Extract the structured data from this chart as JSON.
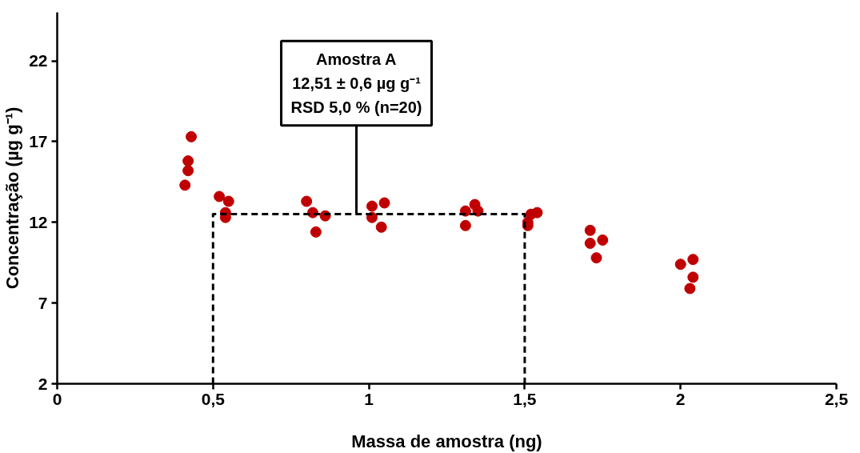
{
  "chart_data": {
    "type": "scatter",
    "xlabel": "Massa de amostra (ng)",
    "ylabel": "Concentração (µg g⁻¹)",
    "xlim": [
      0,
      2.5
    ],
    "ylim": [
      2,
      25
    ],
    "xticks": [
      0,
      {
        "value": 0.5,
        "label": "0,5"
      },
      1,
      {
        "value": 1.5,
        "label": "1,5"
      },
      2,
      {
        "value": 2.5,
        "label": "2,5"
      }
    ],
    "yticks": [
      2,
      7,
      12,
      17,
      22
    ],
    "grid": false,
    "series": [
      {
        "marker": "circle",
        "color": "#c00000",
        "x": [
          0.43,
          0.42,
          0.42,
          0.41,
          0.52,
          0.55,
          0.54,
          0.54,
          0.8,
          0.82,
          0.86,
          0.83,
          1.01,
          1.05,
          1.01,
          1.04,
          1.31,
          1.34,
          1.35,
          1.31,
          1.51,
          1.51,
          1.52,
          1.54,
          1.71,
          1.71,
          1.75,
          1.73,
          2.0,
          2.04,
          2.04,
          2.03
        ],
        "values": [
          17.3,
          15.8,
          15.2,
          14.3,
          13.6,
          13.3,
          12.6,
          12.3,
          13.3,
          12.6,
          12.4,
          11.4,
          13.0,
          13.2,
          12.3,
          11.7,
          12.7,
          13.1,
          12.7,
          11.8,
          12.0,
          11.8,
          12.5,
          12.6,
          11.5,
          10.7,
          10.9,
          9.8,
          9.4,
          9.7,
          8.6,
          7.9
        ]
      },
      {
        "type": "line",
        "marker": "none",
        "color": "#000000",
        "line_style": "dashed",
        "x": [
          0.5,
          0.5,
          1.5,
          1.5
        ],
        "values": [
          2,
          12.51,
          12.51,
          2
        ]
      }
    ],
    "annotations": [
      {
        "text": "Amostra A\n12,51 ± 0,6 µg g⁻¹\nRSD 5,0 % (n=20)",
        "x": 0.96,
        "y": 12.51
      }
    ]
  }
}
